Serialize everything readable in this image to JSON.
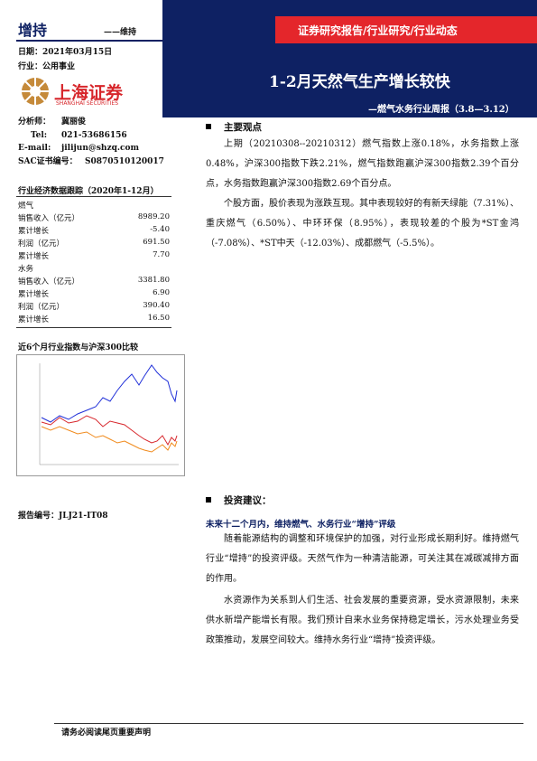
{
  "header": {
    "rating": "增持",
    "rating_change": "——维持",
    "report_type": "证券研究报告/行业研究/行业动态",
    "date": "日期：2021年03月15日",
    "industry": "行业：公用事业",
    "title": "1-2月天然气生产增长较快",
    "subtitle": "—燃气水务行业周报（3.8—3.12）"
  },
  "logo": {
    "name": "上海证券",
    "name_en": "SHANGHAI SECURITIES"
  },
  "analyst": {
    "name_label": "分析师：",
    "name": "冀丽俊",
    "tel_label": "Tel:",
    "tel": "021-53686156",
    "email_label": "E-mail:",
    "email": "jilijun@shzq.com",
    "sac_label": "SAC证书编号：",
    "sac": "S0870510120017"
  },
  "table": {
    "title": "行业经济数据跟踪（2020年1-12月）",
    "rows": [
      [
        "燃气",
        ""
      ],
      [
        "销售收入（亿元）",
        "8989.20"
      ],
      [
        "累计增长",
        "-5.40"
      ],
      [
        "利润（亿元）",
        "691.50"
      ],
      [
        "累计增长",
        "7.70"
      ],
      [
        "水务",
        ""
      ],
      [
        "销售收入（亿元）",
        "3381.80"
      ],
      [
        "累计增长",
        "6.90"
      ],
      [
        "利润（亿元）",
        "390.40"
      ],
      [
        "累计增长",
        "16.50"
      ]
    ]
  },
  "chart": {
    "title": "近6个月行业指数与沪深300比较"
  },
  "report_no": "报告编号：JLJ21-IT08",
  "main_points": {
    "heading": "主要观点",
    "paragraphs": [
      "上期（20210308--20210312）燃气指数上涨0.18%，水务指数上涨0.48%，沪深300指数下跌2.21%，燃气指数跑赢沪深300指数2.39个百分点，水务指数跑赢沪深300指数2.69个百分点。",
      "个股方面，股价表现为涨跌互现。其中表现较好的有新天绿能（7.31%）、重庆燃气（6.50%）、中环环保（8.95%），表现较差的个股为*ST金鸿（-7.08%）、*ST中天（-12.03%）、成都燃气（-5.5%）。"
    ]
  },
  "advice": {
    "heading": "投资建议：",
    "subheading": "未来十二个月内，维持燃气、水务行业“增持”评级",
    "paragraphs": [
      "随着能源结构的调整和环境保护的加强，对行业形成长期利好。维持燃气行业“增持”的投资评级。天然气作为一种清洁能源，可关注其在减碳减排方面的作用。",
      "水资源作为关系到人们生活、社会发展的重要资源，受水资源限制，未来供水新增产能增长有限。我们预计自来水业务保持稳定增长，污水处理业务受政策推动，发展空间较大。维持水务行业“增持”投资评级。"
    ]
  },
  "footer": "请务必阅读尾页重要声明"
}
